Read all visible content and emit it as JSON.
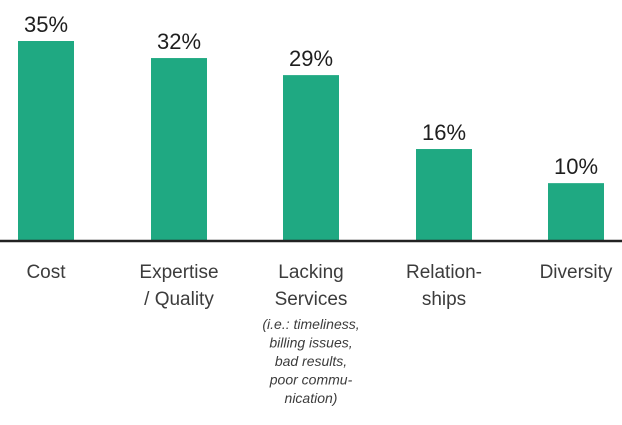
{
  "chart_data": {
    "type": "bar",
    "title": "",
    "xlabel": "",
    "ylabel": "",
    "ylim": [
      0,
      35
    ],
    "grid": false,
    "categories": [
      {
        "lines": [
          "Cost"
        ],
        "note": []
      },
      {
        "lines": [
          "Expertise",
          "/ Quality"
        ],
        "note": []
      },
      {
        "lines": [
          "Lacking",
          "Services"
        ],
        "note": [
          "(i.e.: timeliness,",
          "billing issues,",
          "bad results,",
          "poor commu-",
          "nication)"
        ]
      },
      {
        "lines": [
          "Relation-",
          "ships"
        ],
        "note": []
      },
      {
        "lines": [
          "Diversity"
        ],
        "note": []
      }
    ],
    "values": [
      35,
      32,
      29,
      16,
      10
    ],
    "value_labels": [
      "35%",
      "32%",
      "29%",
      "16%",
      "10%"
    ],
    "colors": {
      "bar": "#1fa982",
      "axis": "#222222",
      "text": "#3c3c3c"
    }
  }
}
